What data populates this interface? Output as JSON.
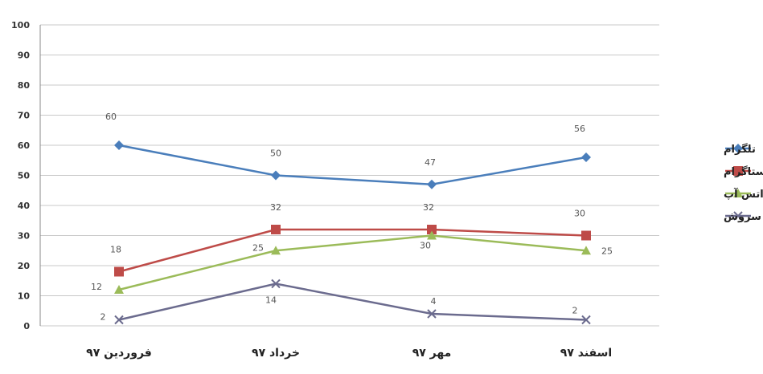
{
  "chart_data": {
    "type": "line",
    "title": "",
    "xlabel": "",
    "ylabel": "",
    "ylim": [
      0,
      100
    ],
    "y_ticks": [
      0,
      10,
      20,
      30,
      40,
      50,
      60,
      70,
      80,
      90,
      100
    ],
    "grid": true,
    "legend_position": "right",
    "categories": [
      "فروردین ۹۷",
      "خرداد ۹۷",
      "مهر ۹۷",
      "اسفند ۹۷"
    ],
    "series": [
      {
        "name": "تلگرام",
        "values": [
          60,
          50,
          47,
          56
        ],
        "color": "#4a7ebb",
        "marker": "diamond"
      },
      {
        "name": "اینستاگرام",
        "values": [
          18,
          32,
          32,
          30
        ],
        "color": "#be4b48",
        "marker": "square"
      },
      {
        "name": "واتس آپ",
        "values": [
          12,
          25,
          30,
          25
        ],
        "color": "#9bbb59",
        "marker": "triangle"
      },
      {
        "name": "سروش",
        "values": [
          2,
          14,
          4,
          2
        ],
        "color": "#6b6b8e",
        "marker": "x"
      }
    ]
  }
}
